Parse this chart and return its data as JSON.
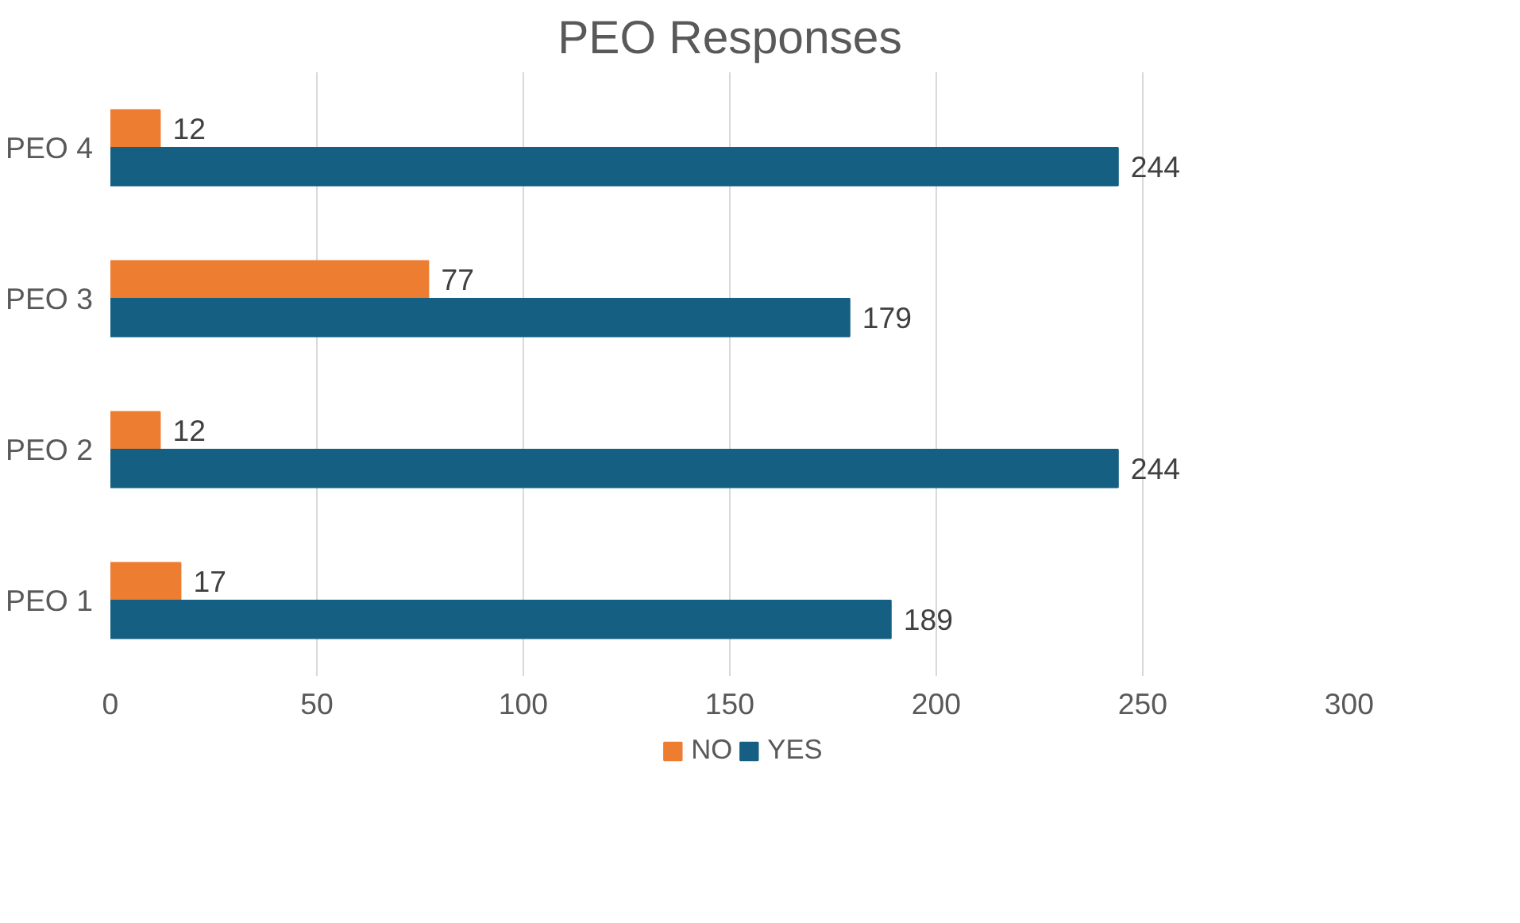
{
  "chart_data": {
    "type": "bar",
    "orientation": "horizontal",
    "title": "PEO Responses",
    "categories": [
      "PEO 4",
      "PEO 3",
      "PEO 2",
      "PEO 1"
    ],
    "series": [
      {
        "name": "NO",
        "color": "#ed7d31",
        "values": [
          12,
          77,
          12,
          17
        ]
      },
      {
        "name": "YES",
        "color": "#156082",
        "values": [
          244,
          179,
          244,
          189
        ]
      }
    ],
    "xlim": [
      0,
      300
    ],
    "xticks": [
      0,
      50,
      100,
      150,
      200,
      250,
      300
    ],
    "grid": "x",
    "legend": "bottom",
    "data_labels": true
  }
}
